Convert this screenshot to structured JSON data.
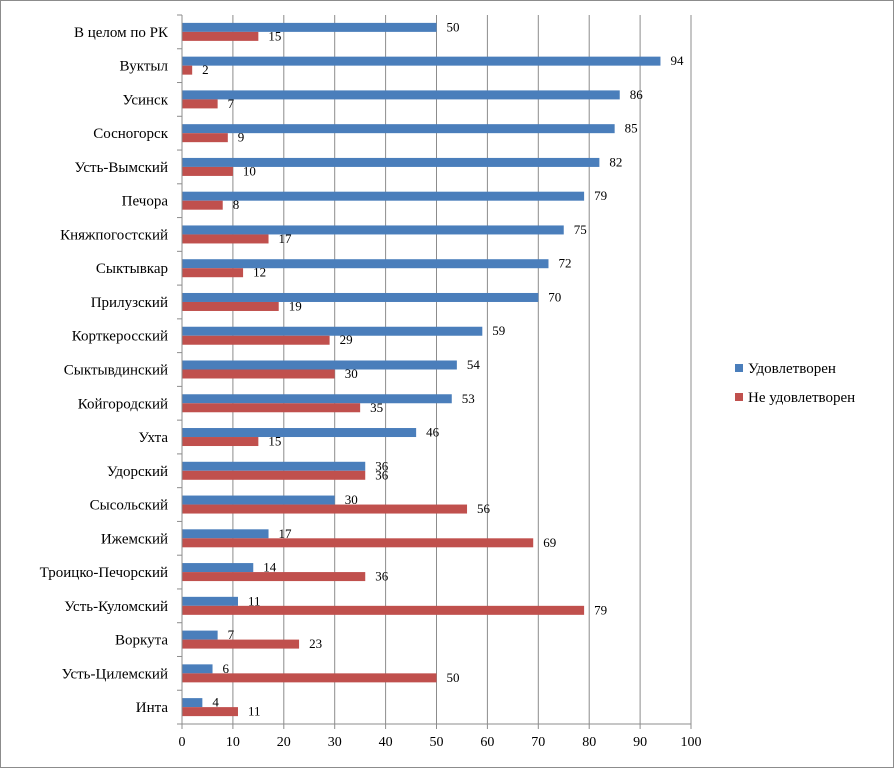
{
  "chart_data": {
    "type": "bar",
    "orientation": "horizontal",
    "categories": [
      "В целом по РК",
      "Вуктыл",
      "Усинск",
      "Сосногорск",
      "Усть-Вымский",
      "Печора",
      "Княжпогостский",
      "Сыктывкар",
      "Прилузский",
      "Корткеросский",
      "Сыктывдинский",
      "Койгородский",
      "Ухта",
      "Удорский",
      "Сысольский",
      "Ижемский",
      "Троицко-Печорский",
      "Усть-Куломский",
      "Воркута",
      "Усть-Цилемский",
      "Инта"
    ],
    "series": [
      {
        "name": "Удовлетворен",
        "color": "#4a7ebb",
        "values": [
          50,
          94,
          86,
          85,
          82,
          79,
          75,
          72,
          70,
          59,
          54,
          53,
          46,
          36,
          30,
          17,
          14,
          11,
          7,
          6,
          4
        ]
      },
      {
        "name": "Не удовлетворен",
        "color": "#c0504d",
        "values": [
          15,
          2,
          7,
          9,
          10,
          8,
          17,
          12,
          19,
          29,
          30,
          35,
          15,
          36,
          56,
          69,
          36,
          79,
          23,
          50,
          11
        ]
      }
    ],
    "x_ticks": [
      "0",
      "10",
      "20",
      "30",
      "40",
      "50",
      "60",
      "70",
      "80",
      "90",
      "100"
    ],
    "xlim": [
      0,
      100
    ],
    "grid": true,
    "legend_position": "right"
  }
}
